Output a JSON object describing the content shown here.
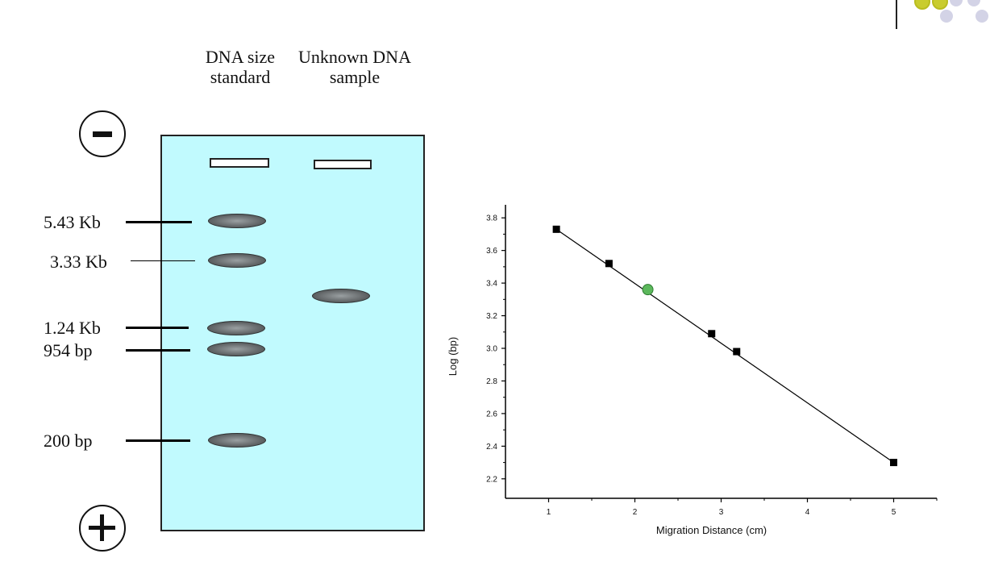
{
  "gel": {
    "header_standard": "DNA size standard",
    "header_unknown": "Unknown DNA sample",
    "negative_symbol": "−",
    "positive_symbol": "+",
    "marker_labels": [
      "5.43 Kb",
      "3.33 Kb",
      "1.24 Kb",
      "954 bp",
      "200 bp"
    ],
    "gel_color": "#c1fafe",
    "band_color": "#5f6364"
  },
  "chart_data": {
    "type": "scatter",
    "xlabel": "Migration Distance (cm)",
    "ylabel": "Log (bp)",
    "x_ticks": [
      "1",
      "2",
      "3",
      "4",
      "5"
    ],
    "y_ticks": [
      "2.2",
      "2.4",
      "2.6",
      "2.8",
      "3.0",
      "3.2",
      "3.4",
      "3.6",
      "3.8"
    ],
    "xlim": [
      0.5,
      5.5
    ],
    "ylim": [
      2.12,
      3.88
    ],
    "series": [
      {
        "marker": "square",
        "color": "#000000",
        "points": [
          [
            1.09,
            3.73
          ],
          [
            1.7,
            3.52
          ],
          [
            2.89,
            3.09
          ],
          [
            3.18,
            2.98
          ],
          [
            5.0,
            2.3
          ]
        ]
      },
      {
        "marker": "circle",
        "color": "#5cb85c",
        "points": [
          [
            2.15,
            3.36
          ]
        ]
      }
    ],
    "fit_line": [
      [
        1.09,
        3.73
      ],
      [
        5.0,
        2.3
      ]
    ]
  },
  "decor": {
    "dot_colors": [
      "#c9cc2e",
      "#c9cc2e",
      "#d3d3e6",
      "#d3d3e6",
      "#d3d3e6",
      "#d3d3e6"
    ]
  }
}
